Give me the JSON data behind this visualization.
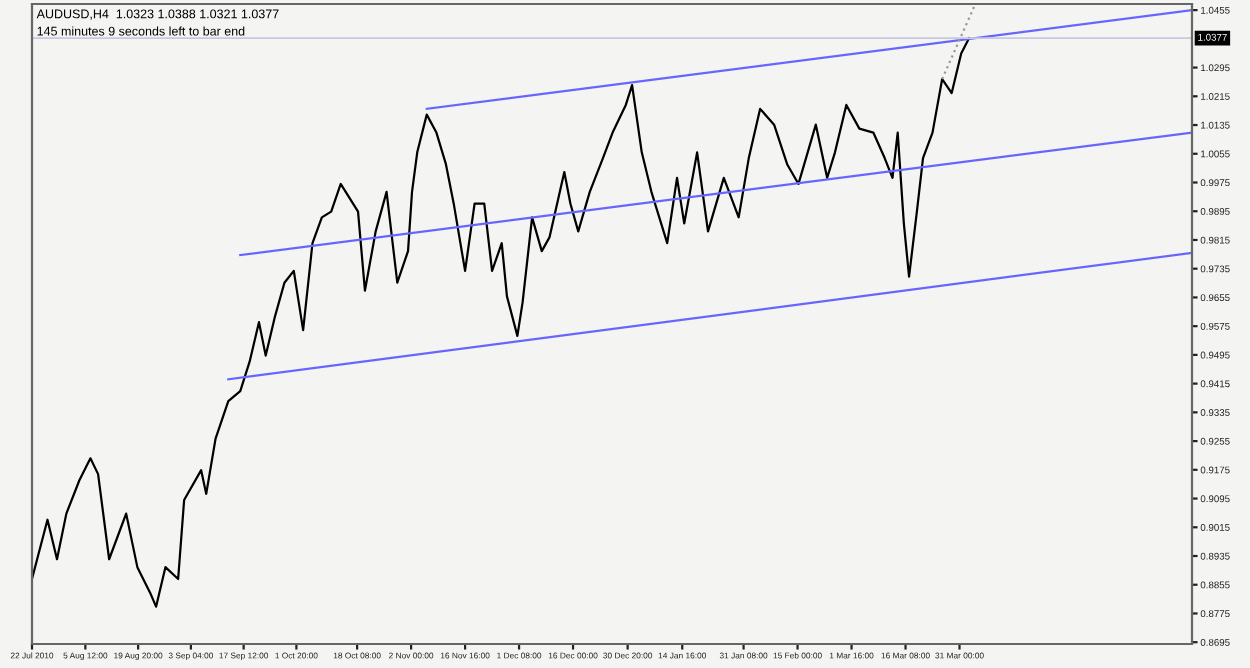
{
  "chart_data": {
    "type": "line",
    "title": "AUDUSD,H4  1.0323 1.0388 1.0321 1.0377",
    "subtitle": "145 minutes 9 seconds left to bar end",
    "series": [
      {
        "color": "#000000",
        "x": [
          "2010-07-22T00:00",
          "2010-07-26T05:00",
          "2010-07-28T19:00",
          "2010-07-31T08:00",
          "2010-08-03T21:00",
          "2010-08-06T21:00",
          "2010-08-08T23:00",
          "2010-08-11T23:00",
          "2010-08-16T14:00",
          "2010-08-19T15:00",
          "2010-08-23T02:00",
          "2010-08-24T17:00",
          "2010-08-27T06:00",
          "2010-08-30T17:00",
          "2010-09-01T08:00",
          "2010-09-05T23:00",
          "2010-09-07T08:00",
          "2010-09-09T21:00",
          "2010-09-13T08:00",
          "2010-09-16T14:00",
          "2010-09-19T03:00",
          "2010-09-21T16:00",
          "2010-09-23T12:00",
          "2010-09-26T01:00",
          "2010-09-28T14:00",
          "2010-10-01T03:00",
          "2010-10-03T16:00",
          "2010-10-06T05:00",
          "2010-10-08T18:00",
          "2010-10-11T07:00",
          "2010-10-13T21:00",
          "2010-10-18T14:00",
          "2010-10-20T11:00",
          "2010-10-23T09:00",
          "2010-10-26T08:00",
          "2010-10-29T06:00",
          "2010-11-01T04:00",
          "2010-11-02T06:00",
          "2010-11-03T16:00",
          "2010-11-06T06:00",
          "2010-11-08T21:00",
          "2010-11-11T11:00",
          "2010-11-13T14:00",
          "2010-11-16T16:00",
          "2010-11-19T06:00",
          "2010-11-21T21:00",
          "2010-11-24T00:00",
          "2010-11-26T15:00",
          "2010-11-28T01:00",
          "2010-11-30T21:00",
          "2010-12-02T07:00",
          "2010-12-04T21:00",
          "2010-12-07T12:00",
          "2010-12-09T15:00",
          "2010-12-13T15:00",
          "2010-12-15T07:00",
          "2010-12-17T10:00",
          "2010-12-20T13:00",
          "2010-12-24T03:00",
          "2010-12-26T18:00",
          "2010-12-30T08:00",
          "2011-01-01T01:00",
          "2011-01-03T16:00",
          "2011-01-06T07:00",
          "2011-01-10T14:00",
          "2011-01-13T06:00",
          "2011-01-15T05:00",
          "2011-01-18T17:00",
          "2011-01-21T16:00",
          "2011-01-25T23:00",
          "2011-01-30T00:00",
          "2011-02-01T18:00",
          "2011-02-04T20:00",
          "2011-02-08T15:00",
          "2011-02-12T04:00",
          "2011-02-15T06:00",
          "2011-02-19T23:00",
          "2011-02-23T01:00",
          "2011-02-25T04:00",
          "2011-02-28T06:00",
          "2011-03-03T19:00",
          "2011-03-07T14:00",
          "2011-03-10T16:00",
          "2011-03-12T19:00",
          "2011-03-14T05:00",
          "2011-03-15T21:00",
          "2011-03-17T07:00",
          "2011-03-19T10:00",
          "2011-03-21T02:00",
          "2011-03-23T16:00",
          "2011-03-26T07:00",
          "2011-03-28T21:00",
          "2011-03-31T11:00",
          "2011-04-02T14:00"
        ],
        "values": [
          0.8871,
          0.9036,
          0.8926,
          0.9053,
          0.9146,
          0.9207,
          0.9163,
          0.8926,
          0.9053,
          0.8904,
          0.8833,
          0.8794,
          0.8904,
          0.8871,
          0.9091,
          0.9174,
          0.9108,
          0.9262,
          0.9366,
          0.9394,
          0.9476,
          0.9586,
          0.9493,
          0.9603,
          0.9696,
          0.9729,
          0.9564,
          0.9806,
          0.9878,
          0.9894,
          0.9971,
          0.9894,
          0.9674,
          0.9839,
          0.9949,
          0.9696,
          0.9784,
          0.9949,
          1.0059,
          1.0164,
          1.0114,
          1.0026,
          0.9916,
          0.9729,
          0.9916,
          0.9916,
          0.9729,
          0.9806,
          0.9658,
          0.9548,
          0.9641,
          0.9878,
          0.9784,
          0.9823,
          1.0004,
          0.9916,
          0.9839,
          0.9949,
          1.0043,
          1.0114,
          1.0191,
          1.0246,
          1.0059,
          0.9949,
          0.9806,
          0.9988,
          0.9861,
          1.0059,
          0.9839,
          0.9988,
          0.9878,
          1.0043,
          1.018,
          1.0136,
          1.0026,
          0.9971,
          1.0136,
          0.9988,
          1.0059,
          1.0191,
          1.0125,
          1.0114,
          1.0043,
          0.9988,
          1.0114,
          0.9861,
          0.9713,
          0.9894,
          1.0043,
          1.0114,
          1.0263,
          1.0224,
          1.0334,
          1.0377
        ]
      },
      {
        "color": "#6666ff",
        "x": [
          "2010-11-06T06:00",
          "2011-06-02T04:00"
        ],
        "values": [
          1.018,
          1.0455
        ]
      },
      {
        "color": "#6666ff",
        "x": [
          "2010-09-16T14:00",
          "2011-06-02T04:00"
        ],
        "values": [
          0.9773,
          1.0114
        ]
      },
      {
        "color": "#6666ff",
        "x": [
          "2010-09-13T08:00",
          "2011-06-02T04:00"
        ],
        "values": [
          0.9427,
          0.9779
        ]
      },
      {
        "color": "#999999",
        "line_style": "dotted",
        "x": [
          "2011-03-26T07:00",
          "2011-04-04T01:00"
        ],
        "values": [
          1.0263,
          1.0466
        ]
      }
    ],
    "ref_lines": [
      {
        "axis": "y",
        "value": 1.0377,
        "label": "1.0377",
        "color": "#c8c8e0"
      }
    ],
    "xlim": [
      "2010-07-22T00:00",
      "2011-06-02T04:00"
    ],
    "ylim": [
      0.869,
      1.0472
    ],
    "xticks": [
      {
        "value": "2010-07-22T00:00",
        "label": "22 Jul 2010"
      },
      {
        "value": "2010-08-05T12:00",
        "label": "5 Aug 12:00"
      },
      {
        "value": "2010-08-19T20:00",
        "label": "19 Aug 20:00"
      },
      {
        "value": "2010-09-03T04:00",
        "label": "3 Sep 04:00"
      },
      {
        "value": "2010-09-17T12:00",
        "label": "17 Sep 12:00"
      },
      {
        "value": "2010-10-01T20:00",
        "label": "1 Oct 20:00"
      },
      {
        "value": "2010-10-18T08:00",
        "label": "18 Oct 08:00"
      },
      {
        "value": "2010-11-02T00:00",
        "label": "2 Nov 00:00"
      },
      {
        "value": "2010-11-16T16:00",
        "label": "16 Nov 16:00"
      },
      {
        "value": "2010-12-01T08:00",
        "label": "1 Dec 08:00"
      },
      {
        "value": "2010-12-16T00:00",
        "label": "16 Dec 00:00"
      },
      {
        "value": "2010-12-30T20:00",
        "label": "30 Dec 20:00"
      },
      {
        "value": "2011-01-14T16:00",
        "label": "14 Jan 16:00"
      },
      {
        "value": "2011-01-31T08:00",
        "label": "31 Jan 08:00"
      },
      {
        "value": "2011-02-15T00:00",
        "label": "15 Feb 00:00"
      },
      {
        "value": "2011-03-01T16:00",
        "label": "1 Mar 16:00"
      },
      {
        "value": "2011-03-16T08:00",
        "label": "16 Mar 08:00"
      },
      {
        "value": "2011-03-31T00:00",
        "label": "31 Mar 00:00"
      }
    ],
    "yticks": [
      0.8695,
      0.8775,
      0.8855,
      0.8935,
      0.9015,
      0.9095,
      0.9175,
      0.9255,
      0.9335,
      0.9415,
      0.9495,
      0.9575,
      0.9655,
      0.9735,
      0.9815,
      0.9895,
      0.9975,
      1.0055,
      1.0135,
      1.0215,
      1.0295,
      1.0455
    ],
    "grid": false,
    "line_style": "solid"
  }
}
